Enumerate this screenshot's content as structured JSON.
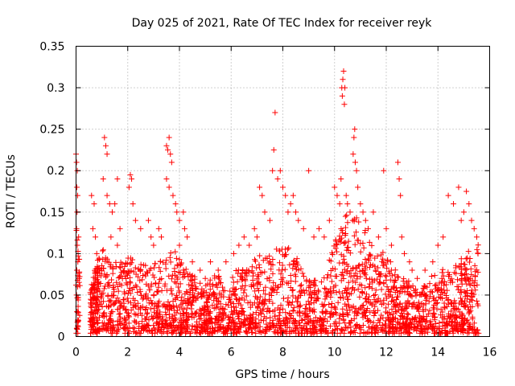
{
  "chart_data": {
    "type": "scatter",
    "title": "Day 025 of 2021, Rate Of TEC Index for receiver reyk",
    "xlabel": "GPS time / hours",
    "ylabel": "ROTI / TECUs",
    "xlim": [
      0,
      16
    ],
    "ylim": [
      0,
      0.35
    ],
    "xticks": [
      0,
      2,
      4,
      6,
      8,
      10,
      12,
      14,
      16
    ],
    "xtick_labels": [
      "0",
      "2",
      "4",
      "6",
      "8",
      "10",
      "12",
      "14",
      "16"
    ],
    "yticks": [
      0,
      0.05,
      0.1,
      0.15,
      0.2,
      0.25,
      0.3,
      0.35
    ],
    "ytick_labels": [
      "0",
      "0.05",
      "0.1",
      "0.15",
      "0.2",
      "0.25",
      "0.3",
      "0.35"
    ],
    "grid": true,
    "marker": "+",
    "series": [
      {
        "name": "ROTI",
        "color": "#ff0000",
        "points": [
          [
            0.0,
            0.22
          ],
          [
            0.02,
            0.21
          ],
          [
            0.05,
            0.2
          ],
          [
            0.03,
            0.18
          ],
          [
            0.06,
            0.17
          ],
          [
            0.04,
            0.15
          ],
          [
            0.02,
            0.13
          ],
          [
            0.05,
            0.11
          ],
          [
            0.07,
            0.09
          ],
          [
            0.03,
            0.08
          ],
          [
            0.06,
            0.06
          ],
          [
            0.02,
            0.05
          ],
          [
            0.04,
            0.03
          ],
          [
            0.07,
            0.02
          ],
          [
            0.03,
            0.01
          ],
          [
            0.1,
            0.12
          ],
          [
            0.12,
            0.07
          ],
          [
            0.6,
            0.17
          ],
          [
            0.7,
            0.16
          ],
          [
            0.65,
            0.13
          ],
          [
            0.75,
            0.12
          ],
          [
            0.8,
            0.1
          ],
          [
            1.1,
            0.24
          ],
          [
            1.15,
            0.23
          ],
          [
            1.2,
            0.22
          ],
          [
            1.05,
            0.19
          ],
          [
            1.2,
            0.17
          ],
          [
            1.3,
            0.16
          ],
          [
            1.4,
            0.15
          ],
          [
            1.5,
            0.16
          ],
          [
            1.6,
            0.19
          ],
          [
            1.7,
            0.13
          ],
          [
            1.35,
            0.12
          ],
          [
            1.6,
            0.11
          ],
          [
            2.1,
            0.195
          ],
          [
            2.15,
            0.19
          ],
          [
            2.05,
            0.18
          ],
          [
            2.2,
            0.16
          ],
          [
            2.3,
            0.14
          ],
          [
            2.5,
            0.13
          ],
          [
            2.8,
            0.14
          ],
          [
            2.9,
            0.12
          ],
          [
            3.0,
            0.11
          ],
          [
            3.2,
            0.13
          ],
          [
            3.3,
            0.12
          ],
          [
            3.5,
            0.23
          ],
          [
            3.55,
            0.225
          ],
          [
            3.6,
            0.24
          ],
          [
            3.65,
            0.22
          ],
          [
            3.7,
            0.21
          ],
          [
            3.5,
            0.19
          ],
          [
            3.6,
            0.18
          ],
          [
            3.75,
            0.17
          ],
          [
            3.85,
            0.16
          ],
          [
            3.9,
            0.15
          ],
          [
            4.0,
            0.14
          ],
          [
            4.15,
            0.15
          ],
          [
            4.2,
            0.13
          ],
          [
            4.3,
            0.12
          ],
          [
            4.0,
            0.11
          ],
          [
            4.5,
            0.09
          ],
          [
            4.8,
            0.08
          ],
          [
            5.0,
            0.07
          ],
          [
            5.2,
            0.09
          ],
          [
            5.5,
            0.08
          ],
          [
            5.8,
            0.09
          ],
          [
            6.1,
            0.1
          ],
          [
            6.3,
            0.11
          ],
          [
            6.5,
            0.12
          ],
          [
            6.7,
            0.11
          ],
          [
            6.9,
            0.13
          ],
          [
            7.0,
            0.12
          ],
          [
            7.1,
            0.18
          ],
          [
            7.2,
            0.17
          ],
          [
            7.3,
            0.15
          ],
          [
            7.5,
            0.14
          ],
          [
            7.6,
            0.2
          ],
          [
            7.7,
            0.27
          ],
          [
            7.65,
            0.225
          ],
          [
            7.8,
            0.19
          ],
          [
            7.9,
            0.2
          ],
          [
            8.0,
            0.18
          ],
          [
            8.1,
            0.17
          ],
          [
            8.2,
            0.15
          ],
          [
            8.3,
            0.16
          ],
          [
            8.4,
            0.17
          ],
          [
            8.5,
            0.15
          ],
          [
            8.6,
            0.14
          ],
          [
            8.8,
            0.13
          ],
          [
            9.0,
            0.2
          ],
          [
            9.2,
            0.12
          ],
          [
            9.4,
            0.13
          ],
          [
            9.6,
            0.12
          ],
          [
            9.8,
            0.14
          ],
          [
            10.0,
            0.18
          ],
          [
            10.1,
            0.17
          ],
          [
            10.2,
            0.16
          ],
          [
            10.25,
            0.19
          ],
          [
            10.28,
            0.3
          ],
          [
            10.3,
            0.29
          ],
          [
            10.32,
            0.31
          ],
          [
            10.35,
            0.32
          ],
          [
            10.4,
            0.3
          ],
          [
            10.38,
            0.28
          ],
          [
            10.45,
            0.17
          ],
          [
            10.5,
            0.16
          ],
          [
            10.6,
            0.15
          ],
          [
            10.7,
            0.14
          ],
          [
            10.72,
            0.22
          ],
          [
            10.75,
            0.24
          ],
          [
            10.78,
            0.25
          ],
          [
            10.8,
            0.21
          ],
          [
            10.85,
            0.2
          ],
          [
            10.9,
            0.18
          ],
          [
            11.0,
            0.16
          ],
          [
            11.1,
            0.15
          ],
          [
            11.2,
            0.14
          ],
          [
            11.3,
            0.13
          ],
          [
            11.5,
            0.15
          ],
          [
            11.7,
            0.12
          ],
          [
            11.9,
            0.2
          ],
          [
            12.0,
            0.13
          ],
          [
            12.2,
            0.11
          ],
          [
            12.45,
            0.21
          ],
          [
            12.5,
            0.19
          ],
          [
            12.55,
            0.17
          ],
          [
            12.6,
            0.12
          ],
          [
            12.7,
            0.1
          ],
          [
            12.9,
            0.09
          ],
          [
            13.0,
            0.08
          ],
          [
            13.2,
            0.07
          ],
          [
            13.5,
            0.08
          ],
          [
            13.8,
            0.09
          ],
          [
            14.0,
            0.11
          ],
          [
            14.2,
            0.12
          ],
          [
            14.4,
            0.17
          ],
          [
            14.6,
            0.16
          ],
          [
            14.8,
            0.18
          ],
          [
            14.9,
            0.14
          ],
          [
            15.0,
            0.15
          ],
          [
            15.1,
            0.175
          ],
          [
            15.2,
            0.16
          ],
          [
            15.3,
            0.14
          ],
          [
            15.4,
            0.13
          ],
          [
            15.5,
            0.12
          ],
          [
            15.55,
            0.1
          ]
        ],
        "density_profile": [
          [
            0.0,
            0.12
          ],
          [
            0.5,
            0.04
          ],
          [
            1.0,
            0.09
          ],
          [
            1.5,
            0.08
          ],
          [
            2.0,
            0.08
          ],
          [
            2.5,
            0.07
          ],
          [
            3.0,
            0.07
          ],
          [
            3.5,
            0.09
          ],
          [
            4.0,
            0.08
          ],
          [
            4.5,
            0.06
          ],
          [
            5.0,
            0.05
          ],
          [
            5.5,
            0.06
          ],
          [
            6.0,
            0.06
          ],
          [
            6.5,
            0.07
          ],
          [
            7.0,
            0.08
          ],
          [
            7.5,
            0.08
          ],
          [
            8.0,
            0.09
          ],
          [
            8.5,
            0.08
          ],
          [
            9.0,
            0.06
          ],
          [
            9.5,
            0.05
          ],
          [
            10.0,
            0.1
          ],
          [
            10.5,
            0.13
          ],
          [
            11.0,
            0.12
          ],
          [
            11.5,
            0.09
          ],
          [
            12.0,
            0.08
          ],
          [
            12.5,
            0.06
          ],
          [
            13.0,
            0.05
          ],
          [
            13.5,
            0.05
          ],
          [
            14.0,
            0.06
          ],
          [
            14.5,
            0.07
          ],
          [
            15.0,
            0.08
          ],
          [
            15.55,
            0.09
          ]
        ],
        "x_range": [
          0.0,
          15.58
        ]
      }
    ]
  }
}
